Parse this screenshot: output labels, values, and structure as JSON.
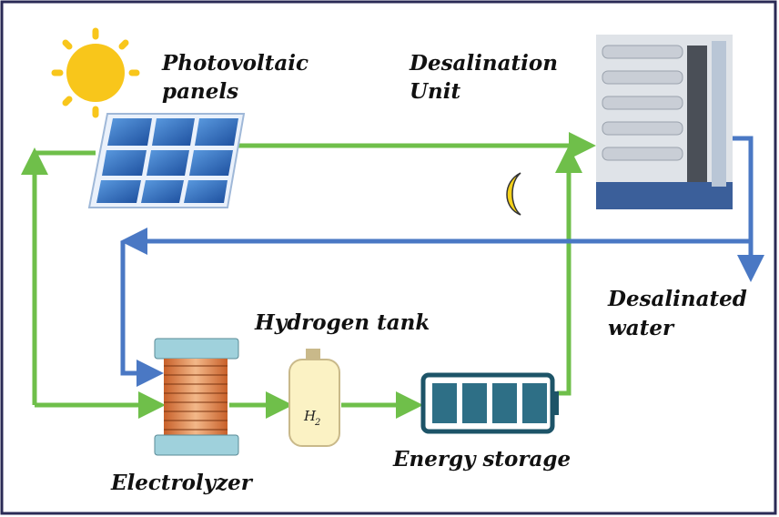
{
  "nodes": [
    {
      "lines": [
        "Photovoltaic",
        "panels"
      ]
    },
    {
      "lines": [
        "Desalination",
        "Unit"
      ]
    },
    {
      "lines": [
        "Desalinated",
        "water"
      ]
    },
    {
      "lines": [
        "Hydrogen tank"
      ]
    },
    {
      "lines": [
        "Energy storage"
      ]
    },
    {
      "lines": [
        "Electrolyzer"
      ]
    }
  ],
  "tank_symbol": {
    "symbol": "H",
    "subscript": "2"
  }
}
